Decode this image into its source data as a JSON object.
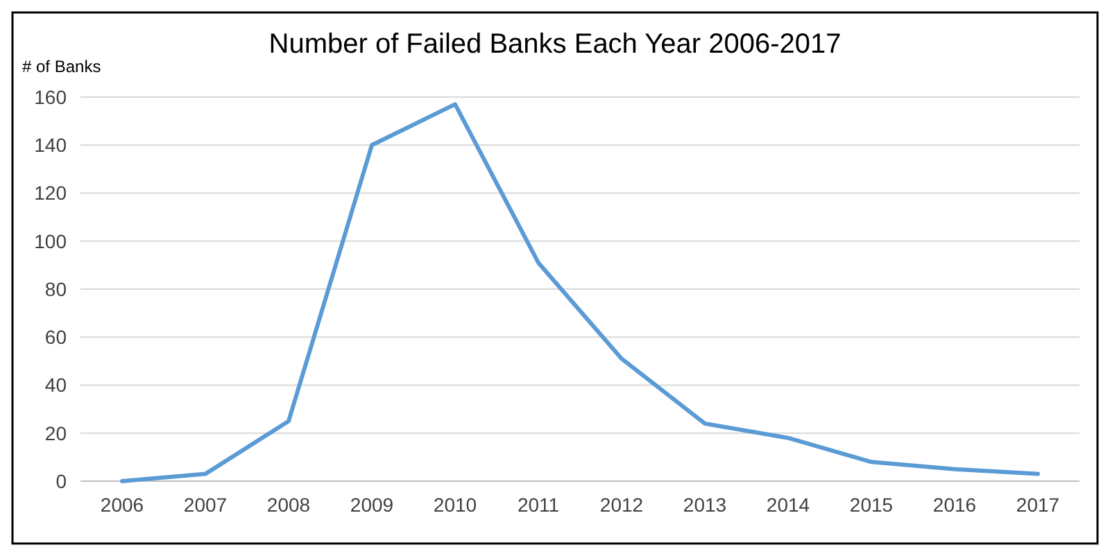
{
  "chart_data": {
    "type": "line",
    "title": "Number of Failed Banks Each Year 2006-2017",
    "ylabel": "# of Banks",
    "categories": [
      "2006",
      "2007",
      "2008",
      "2009",
      "2010",
      "2011",
      "2012",
      "2013",
      "2014",
      "2015",
      "2016",
      "2017"
    ],
    "series": [
      {
        "color": "#5b9bd5",
        "values": [
          0,
          3,
          25,
          140,
          157,
          91,
          51,
          24,
          18,
          8,
          5,
          3
        ]
      }
    ],
    "ylim": [
      0,
      160
    ],
    "yticks": [
      0,
      20,
      40,
      60,
      80,
      100,
      120,
      140,
      160
    ],
    "grid": "y",
    "marker": "none",
    "line_style": "solid"
  }
}
